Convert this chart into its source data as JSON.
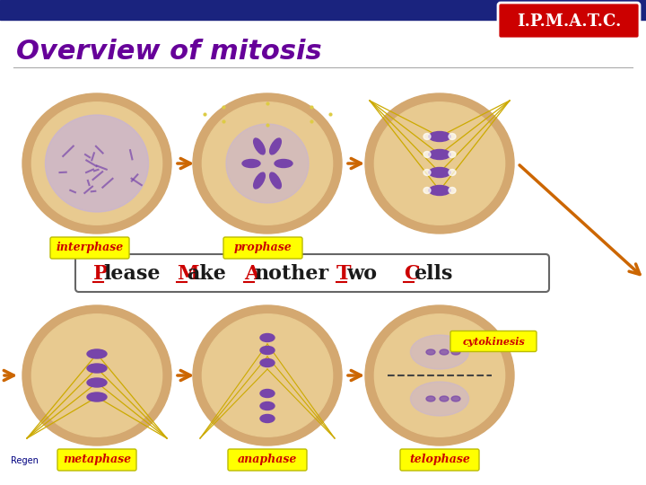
{
  "title": "Overview of mitosis",
  "title_color": "#660099",
  "header_bar_color": "#1a237e",
  "badge_bg": "#cc0000",
  "badge_text": "I.P.M.A.T.C.",
  "badge_text_color": "#ffffff",
  "mnemonic_words": [
    "Please",
    "Make",
    "Another",
    "Two",
    "Cells"
  ],
  "mnemonic_initial_color": "#cc0000",
  "mnemonic_rest_color": "#1a1a1a",
  "label_bg": "#ffff00",
  "label_text_color": "#cc0000",
  "labels": [
    "interphase",
    "prophase",
    "metaphase",
    "anaphase",
    "telophase",
    "cytokinesis"
  ],
  "bg_color": "#ffffff",
  "cell_color": "#d4a870",
  "cell_inner": "#e8ca90",
  "arrow_color": "#cc6600",
  "regen_text": "Regen",
  "regen_color": "#000080",
  "nucleus_color": "#c8b4d4",
  "chrom_color": "#7744aa",
  "spindle_color": "#ccaa00"
}
